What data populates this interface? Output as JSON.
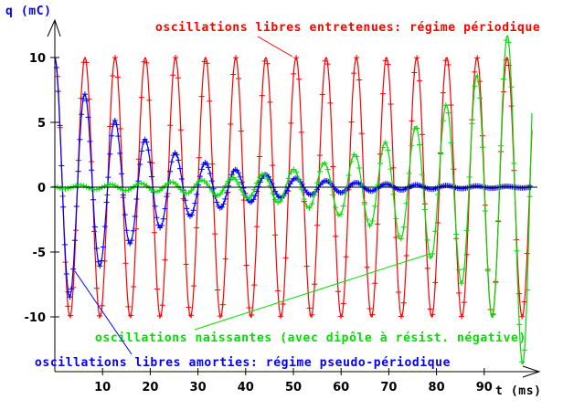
{
  "chart_data": {
    "type": "line",
    "title": "",
    "xlabel": "t (ms)",
    "ylabel": "q (mC)",
    "xlim": [
      0,
      101
    ],
    "ylim": [
      -14.2,
      12.9
    ],
    "grid": false,
    "x_ticks": [
      "10",
      "20",
      "30",
      "40",
      "50",
      "60",
      "70",
      "80",
      "90"
    ],
    "x_tick_values": [
      10,
      20,
      30,
      40,
      50,
      60,
      70,
      80,
      90
    ],
    "y_ticks": [
      "10",
      "5",
      "0",
      "-5",
      "-10"
    ],
    "y_tick_values": [
      10,
      5,
      0,
      -5,
      -10
    ],
    "series": [
      {
        "name": "oscillations libres entretenues: régime périodique",
        "color": "#ff0000",
        "model": {
          "kind": "sustained",
          "amplitude": 10,
          "period_ms": 6.32,
          "t_peak_ms": 0,
          "tau_ms": null
        },
        "t_range": [
          0,
          100
        ]
      },
      {
        "name": "oscillations libres amorties: régime pseudo-périodique",
        "color": "#0000ff",
        "model": {
          "kind": "damped",
          "amplitude": 10,
          "period_ms": 6.32,
          "t_peak_ms": 0,
          "tau_ms": 19
        },
        "t_range": [
          0,
          100
        ]
      },
      {
        "name": "oscillations naissantes (avec dipôle à résist. négative)",
        "color": "#00dd00",
        "model": {
          "kind": "growing",
          "amplitude_at_ref": 3.45,
          "ref_t_ms": 69.2,
          "period_ms": 6.4,
          "t_peak_ms": 69.2,
          "tau_ms": 21
        },
        "t_range": [
          0,
          100
        ]
      }
    ],
    "annotations": [
      {
        "text": "oscillations libres entretenues: régime périodique",
        "color": "#ff0000",
        "points_to": [
          50,
          10
        ]
      },
      {
        "text": "oscillations naissantes (avec dipôle à résist. négative)",
        "color": "#00dd00",
        "points_to": [
          78.5,
          -5.2
        ]
      },
      {
        "text": "oscillations libres amorties: régime pseudo-périodique",
        "color": "#0000ff",
        "points_to": [
          4.2,
          -6.5
        ]
      }
    ]
  }
}
